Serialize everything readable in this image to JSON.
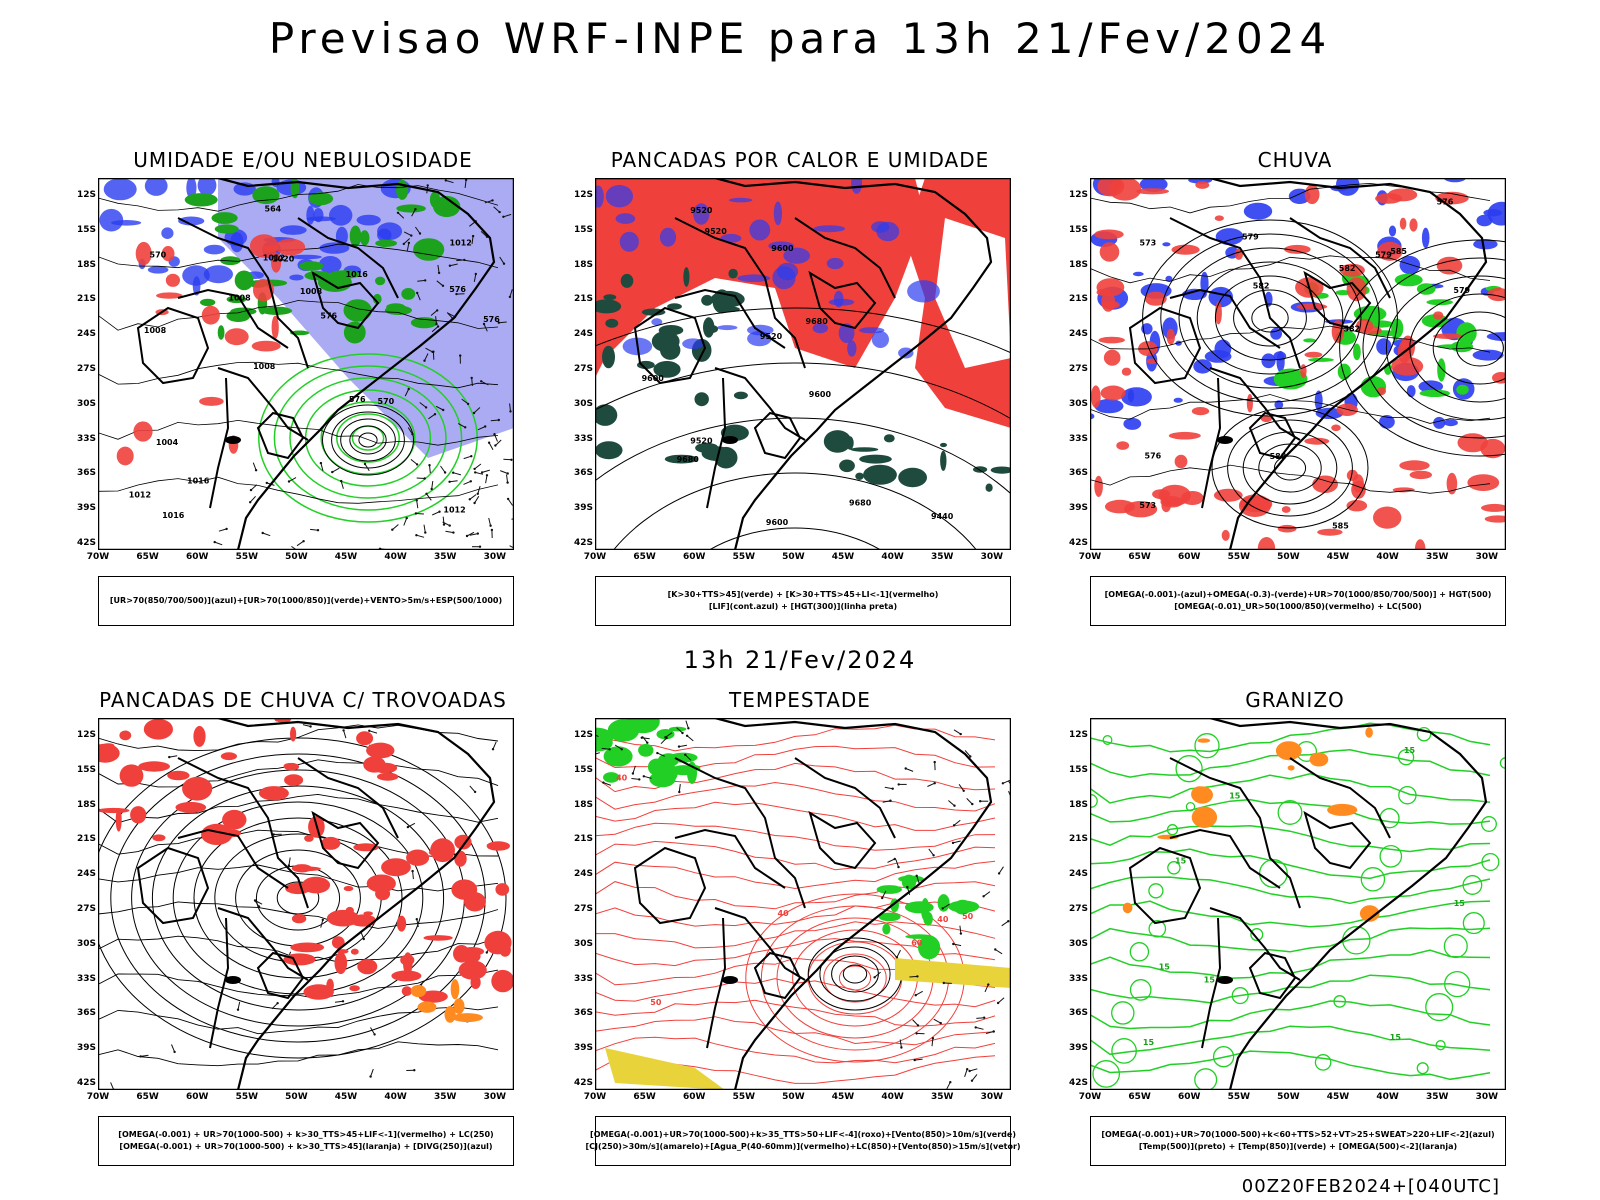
{
  "main_title": "Previsao WRF-INPE  para 13h 21/Fev/2024",
  "mid_time": "13h 21/Fev/2024",
  "footer": "00Z20FEB2024+[040UTC]",
  "lat_labels": [
    "12S",
    "15S",
    "18S",
    "21S",
    "24S",
    "27S",
    "30S",
    "33S",
    "36S",
    "39S",
    "42S"
  ],
  "lon_labels": [
    "70W",
    "65W",
    "60W",
    "55W",
    "50W",
    "45W",
    "40W",
    "35W",
    "30W"
  ],
  "panels": [
    {
      "title": "UMIDADE E/OU NEBULOSIDADE",
      "legend": [
        "[UR>70(850/700/500)](azul)+[UR>70(1000/850)](verde)+VENTO>5m/s+ESP(500/1000)"
      ],
      "style": "umidade",
      "labels": [
        "1012",
        "1008",
        "1012",
        "1008",
        "1016",
        "1016",
        "1012",
        "1008",
        "1004",
        "1008",
        "1012",
        "1016",
        "1020",
        "576",
        "570",
        "570",
        "564",
        "576",
        "576",
        "576"
      ]
    },
    {
      "title": "PANCADAS POR CALOR E UMIDADE",
      "legend": [
        "[K>30+TTS>45](verde) + [K>30+TTS>45+LI<-1](vermelho)",
        "[LIF](cont.azul) + [HGT(300)](linha preta)"
      ],
      "style": "pancadas",
      "labels": [
        "9680",
        "9680",
        "9600",
        "9600",
        "9520",
        "9520",
        "9600",
        "9520",
        "9520",
        "9680",
        "9600",
        "9440"
      ]
    },
    {
      "title": "CHUVA",
      "legend": [
        "[OMEGA(-0.001)-(azul)+OMEGA(-0.3)-(verde)+UR>70(1000/850/700/500)] + HGT(500)",
        "[OMEGA(-0.01)_UR>50(1000/850)(vermelho) + LC(500)"
      ],
      "style": "chuva",
      "labels": [
        "585",
        "582",
        "579",
        "576",
        "573",
        "582",
        "579",
        "576",
        "573",
        "588",
        "585",
        "582",
        "579"
      ]
    },
    {
      "title": "PANCADAS DE CHUVA C/ TROVOADAS",
      "legend": [
        "[OMEGA(-0.001) + UR>70(1000-500) + k>30_TTS>45+LIF<-1](vermelho) + LC(250)",
        "[OMEGA(-0.001) + UR>70(1000-500) + k>30_TTS>45](laranja) + [DIVG(250)](azul)"
      ],
      "style": "trovoadas",
      "labels": []
    },
    {
      "title": "TEMPESTADE",
      "legend": [
        "[OMEGA(-0.001)+UR>70(1000-500)+k>35_TTS>50+LIF<-4](roxo)+[Vento(850)>10m/s](verde)",
        "[CJ(250)>30m/s](amarelo)+[Agua_P(40-60mm)](vermelho)+LC(850)+[Vento(850)>15m/s](vetor)"
      ],
      "style": "tempestade",
      "labels": [
        "40",
        "50",
        "60",
        "40",
        "50",
        "40"
      ]
    },
    {
      "title": "GRANIZO",
      "legend": [
        "[OMEGA(-0.001)+UR>70(1000-500)+k<60+TTS>52+VT>25+SWEAT>220+LIF<-2](azul)",
        "[Temp(500)](preto) + [Temp(850)](verde) + [OMEGA(500)<-2](laranja)"
      ],
      "style": "granizo",
      "labels": [
        "15",
        "15",
        "15",
        "15",
        "15",
        "15",
        "15",
        "15"
      ]
    }
  ],
  "colors": {
    "red": "#f0403c",
    "blue": "#2b3cf0",
    "green": "#22d025",
    "darkgreen": "#1f4a3e",
    "lavender": "#8f8ff0",
    "yellow": "#e8d43a",
    "orange": "#ff8a20"
  }
}
